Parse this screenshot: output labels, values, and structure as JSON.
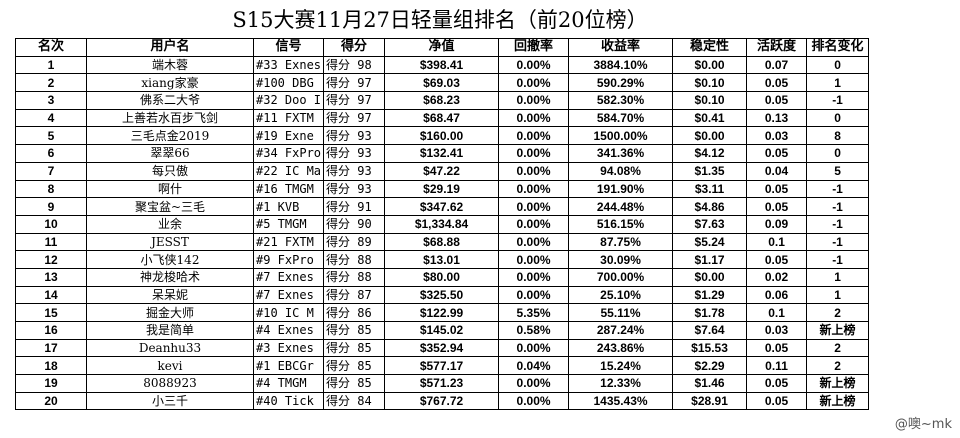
{
  "title": "S15大赛11月27日轻量组排名（前20位榜）",
  "columns": [
    "名次",
    "用户名",
    "信号",
    "得分",
    "净值",
    "回撤率",
    "收益率",
    "稳定性",
    "活跃度",
    "排名变化"
  ],
  "rows": [
    {
      "rank": "1",
      "user": "端木蓉",
      "account": "#33 Exnes",
      "score": "得分 98",
      "net": "$398.41",
      "drawdown": "0.00%",
      "return": "3884.10%",
      "stability": "$0.00",
      "activity": "0.07",
      "change": "0"
    },
    {
      "rank": "2",
      "user": "xiang家豪",
      "account": "#100 DBG",
      "score": "得分 97",
      "net": "$69.03",
      "drawdown": "0.00%",
      "return": "590.29%",
      "stability": "$0.10",
      "activity": "0.05",
      "change": "1"
    },
    {
      "rank": "3",
      "user": "佛系二大爷",
      "account": "#32 Doo I",
      "score": "得分 97",
      "net": "$68.23",
      "drawdown": "0.00%",
      "return": "582.30%",
      "stability": "$0.10",
      "activity": "0.05",
      "change": "-1"
    },
    {
      "rank": "4",
      "user": "上善若水百步飞剑",
      "account": "#11 FXTM",
      "score": "得分 97",
      "net": "$68.47",
      "drawdown": "0.00%",
      "return": "584.70%",
      "stability": "$0.41",
      "activity": "0.13",
      "change": "0"
    },
    {
      "rank": "5",
      "user": "三毛点金2019",
      "account": "#19 Exne",
      "score": "得分 93",
      "net": "$160.00",
      "drawdown": "0.00%",
      "return": "1500.00%",
      "stability": "$0.00",
      "activity": "0.03",
      "change": "8"
    },
    {
      "rank": "6",
      "user": "翠翠66",
      "account": "#34 FxPro",
      "score": "得分 93",
      "net": "$132.41",
      "drawdown": "0.00%",
      "return": "341.36%",
      "stability": "$4.12",
      "activity": "0.05",
      "change": "0"
    },
    {
      "rank": "7",
      "user": "每只傲",
      "account": "#22 IC Ma",
      "score": "得分 93",
      "net": "$47.22",
      "drawdown": "0.00%",
      "return": "94.08%",
      "stability": "$1.35",
      "activity": "0.04",
      "change": "5"
    },
    {
      "rank": "8",
      "user": "啊什",
      "account": "#16 TMGM",
      "score": "得分 93",
      "net": "$29.19",
      "drawdown": "0.00%",
      "return": "191.90%",
      "stability": "$3.11",
      "activity": "0.05",
      "change": "-1"
    },
    {
      "rank": "9",
      "user": "聚宝盆~三毛",
      "account": "#1 KVB",
      "score": "得分 91",
      "net": "$347.62",
      "drawdown": "0.00%",
      "return": "244.48%",
      "stability": "$4.86",
      "activity": "0.05",
      "change": "-1"
    },
    {
      "rank": "10",
      "user": "业余",
      "account": "#5 TMGM",
      "score": "得分 90",
      "net": "$1,334.84",
      "drawdown": "0.00%",
      "return": "516.15%",
      "stability": "$7.63",
      "activity": "0.09",
      "change": "-1"
    },
    {
      "rank": "11",
      "user": "JESST",
      "account": "#21 FXTM",
      "score": "得分 89",
      "net": "$68.88",
      "drawdown": "0.00%",
      "return": "87.75%",
      "stability": "$5.24",
      "activity": "0.1",
      "change": "-1"
    },
    {
      "rank": "12",
      "user": "小飞侠142",
      "account": "#9 FxPro",
      "score": "得分 88",
      "net": "$13.01",
      "drawdown": "0.00%",
      "return": "30.09%",
      "stability": "$1.17",
      "activity": "0.05",
      "change": "-1"
    },
    {
      "rank": "13",
      "user": "神龙梭哈术",
      "account": "#7 Exnes",
      "score": "得分 88",
      "net": "$80.00",
      "drawdown": "0.00%",
      "return": "700.00%",
      "stability": "$0.00",
      "activity": "0.02",
      "change": "1"
    },
    {
      "rank": "14",
      "user": "呆呆妮",
      "account": "#7 Exnes",
      "score": "得分 87",
      "net": "$325.50",
      "drawdown": "0.00%",
      "return": "25.10%",
      "stability": "$1.29",
      "activity": "0.06",
      "change": "1"
    },
    {
      "rank": "15",
      "user": "掘金大师",
      "account": "#10 IC M",
      "score": "得分 86",
      "net": "$122.99",
      "drawdown": "5.35%",
      "return": "55.11%",
      "stability": "$1.78",
      "activity": "0.1",
      "change": "2"
    },
    {
      "rank": "16",
      "user": "我是简单",
      "account": "#4 Exnes",
      "score": "得分 85",
      "net": "$145.02",
      "drawdown": "0.58%",
      "return": "287.24%",
      "stability": "$7.64",
      "activity": "0.03",
      "change": "新上榜"
    },
    {
      "rank": "17",
      "user": "Deanhu33",
      "account": "#3 Exnes",
      "score": "得分 85",
      "net": "$352.94",
      "drawdown": "0.00%",
      "return": "243.86%",
      "stability": "$15.53",
      "activity": "0.05",
      "change": "2"
    },
    {
      "rank": "18",
      "user": "kevi",
      "account": "#1 EBCGr",
      "score": "得分 85",
      "net": "$577.17",
      "drawdown": "0.04%",
      "return": "15.24%",
      "stability": "$2.29",
      "activity": "0.11",
      "change": "2"
    },
    {
      "rank": "19",
      "user": "8088923",
      "account": "#4 TMGM",
      "score": "得分 85",
      "net": "$571.23",
      "drawdown": "0.00%",
      "return": "12.33%",
      "stability": "$1.46",
      "activity": "0.05",
      "change": "新上榜"
    },
    {
      "rank": "20",
      "user": "小三千",
      "account": "#40 Tick",
      "score": "得分 84",
      "net": "$767.72",
      "drawdown": "0.00%",
      "return": "1435.43%",
      "stability": "$28.91",
      "activity": "0.05",
      "change": "新上榜"
    }
  ],
  "watermark": "@噢~mk"
}
